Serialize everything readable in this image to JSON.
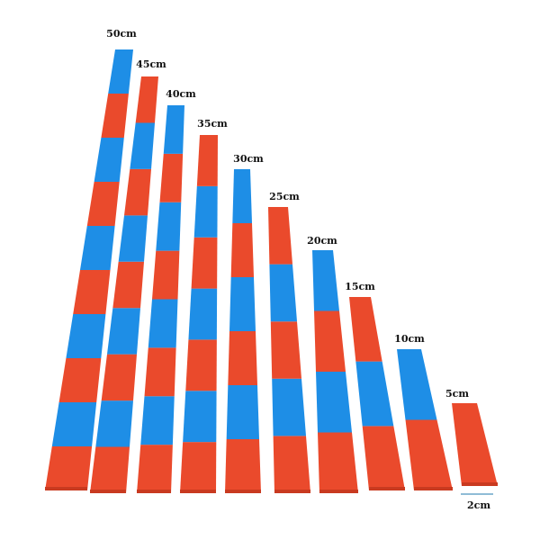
{
  "rods": [
    {
      "label": "50cm"
    },
    {
      "label": "45cm"
    },
    {
      "label": "40cm"
    },
    {
      "label": "35cm"
    },
    {
      "label": "30cm"
    },
    {
      "label": "25cm"
    },
    {
      "label": "20cm"
    },
    {
      "label": "15cm"
    },
    {
      "label": "10cm"
    },
    {
      "label": "5cm"
    }
  ],
  "scale_label": "2cm"
}
